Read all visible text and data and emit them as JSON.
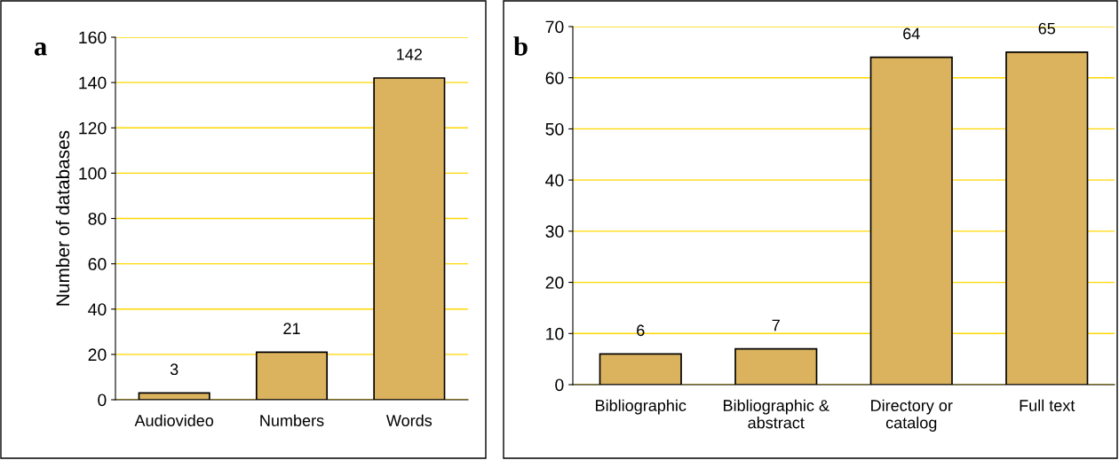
{
  "chart_data": [
    {
      "type": "bar",
      "ylabel": "Number of databases",
      "annotations": [
        "a"
      ],
      "categories": [
        "Audiovideo",
        "Numbers",
        "Words"
      ],
      "values": [
        3,
        21,
        142
      ],
      "color": "#dbb35f",
      "ylim": [
        0,
        160
      ],
      "yticks": [
        0,
        20,
        40,
        60,
        80,
        100,
        120,
        140,
        160
      ],
      "grid": "y",
      "data_labels": true
    },
    {
      "type": "bar",
      "annotations": [
        "b"
      ],
      "categories": [
        "Bibliographic",
        "Bibliographic &\nabstract",
        "Directory or\ncatalog",
        "Full text"
      ],
      "values": [
        6,
        7,
        64,
        65
      ],
      "color": "#dbb35f",
      "ylim": [
        0,
        70
      ],
      "yticks": [
        0,
        10,
        20,
        30,
        40,
        50,
        60,
        70
      ],
      "grid": "y",
      "data_labels": true
    }
  ]
}
